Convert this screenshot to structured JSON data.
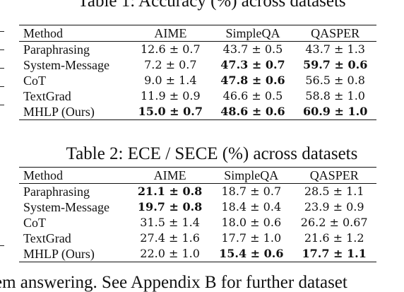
{
  "table1": {
    "caption": "Table 1: Accuracy (%) across datasets",
    "columns": [
      "Method",
      "AIME",
      "SimpleQA",
      "QASPER"
    ],
    "rows": [
      {
        "method": "Paraphrasing",
        "cells": [
          {
            "v": "12.6 ± 0.7",
            "b": false
          },
          {
            "v": "43.7 ± 0.5",
            "b": false
          },
          {
            "v": "43.7 ± 1.3",
            "b": false
          }
        ]
      },
      {
        "method": "System-Message",
        "cells": [
          {
            "v": "7.2 ± 0.7",
            "b": false
          },
          {
            "v": "47.3 ± 0.7",
            "b": true
          },
          {
            "v": "59.7 ± 0.6",
            "b": true
          }
        ]
      },
      {
        "method": "CoT",
        "cells": [
          {
            "v": "9.0 ± 1.4",
            "b": false
          },
          {
            "v": "47.8 ± 0.6",
            "b": true
          },
          {
            "v": "56.5 ± 0.8",
            "b": false
          }
        ]
      },
      {
        "method": "TextGrad",
        "cells": [
          {
            "v": "11.9 ± 0.9",
            "b": false
          },
          {
            "v": "46.6 ± 0.5",
            "b": false
          },
          {
            "v": "58.8 ± 1.0",
            "b": false
          }
        ]
      },
      {
        "method": "MHLP (Ours)",
        "cells": [
          {
            "v": "15.0 ± 0.7",
            "b": true
          },
          {
            "v": "48.6 ± 0.6",
            "b": true
          },
          {
            "v": "60.9 ± 1.0",
            "b": true
          }
        ]
      }
    ]
  },
  "table2": {
    "caption": "Table 2: ECE / SECE (%) across datasets",
    "columns": [
      "Method",
      "AIME",
      "SimpleQA",
      "QASPER"
    ],
    "rows": [
      {
        "method": "Paraphrasing",
        "cells": [
          {
            "v": "21.1 ± 0.8",
            "b": true
          },
          {
            "v": "18.7 ± 0.7",
            "b": false
          },
          {
            "v": "28.5 ± 1.1",
            "b": false
          }
        ]
      },
      {
        "method": "System-Message",
        "cells": [
          {
            "v": "19.7 ± 0.8",
            "b": true
          },
          {
            "v": "18.4 ± 0.4",
            "b": false
          },
          {
            "v": "23.9 ± 0.9",
            "b": false
          }
        ]
      },
      {
        "method": "CoT",
        "cells": [
          {
            "v": "31.5 ± 1.4",
            "b": false
          },
          {
            "v": "18.0 ± 0.6",
            "b": false
          },
          {
            "v": "26.2 ± 0.67",
            "b": false
          }
        ]
      },
      {
        "method": "TextGrad",
        "cells": [
          {
            "v": "27.4 ± 1.6",
            "b": false
          },
          {
            "v": "17.7 ± 1.0",
            "b": false
          },
          {
            "v": "21.6 ± 1.2",
            "b": false
          }
        ]
      },
      {
        "method": "MHLP (Ours)",
        "cells": [
          {
            "v": "22.0 ± 1.0",
            "b": false
          },
          {
            "v": "15.4 ± 0.6",
            "b": true
          },
          {
            "v": "17.7 ± 1.1",
            "b": true
          }
        ]
      }
    ]
  },
  "footer_text": "em answering. See Appendix B for further dataset"
}
